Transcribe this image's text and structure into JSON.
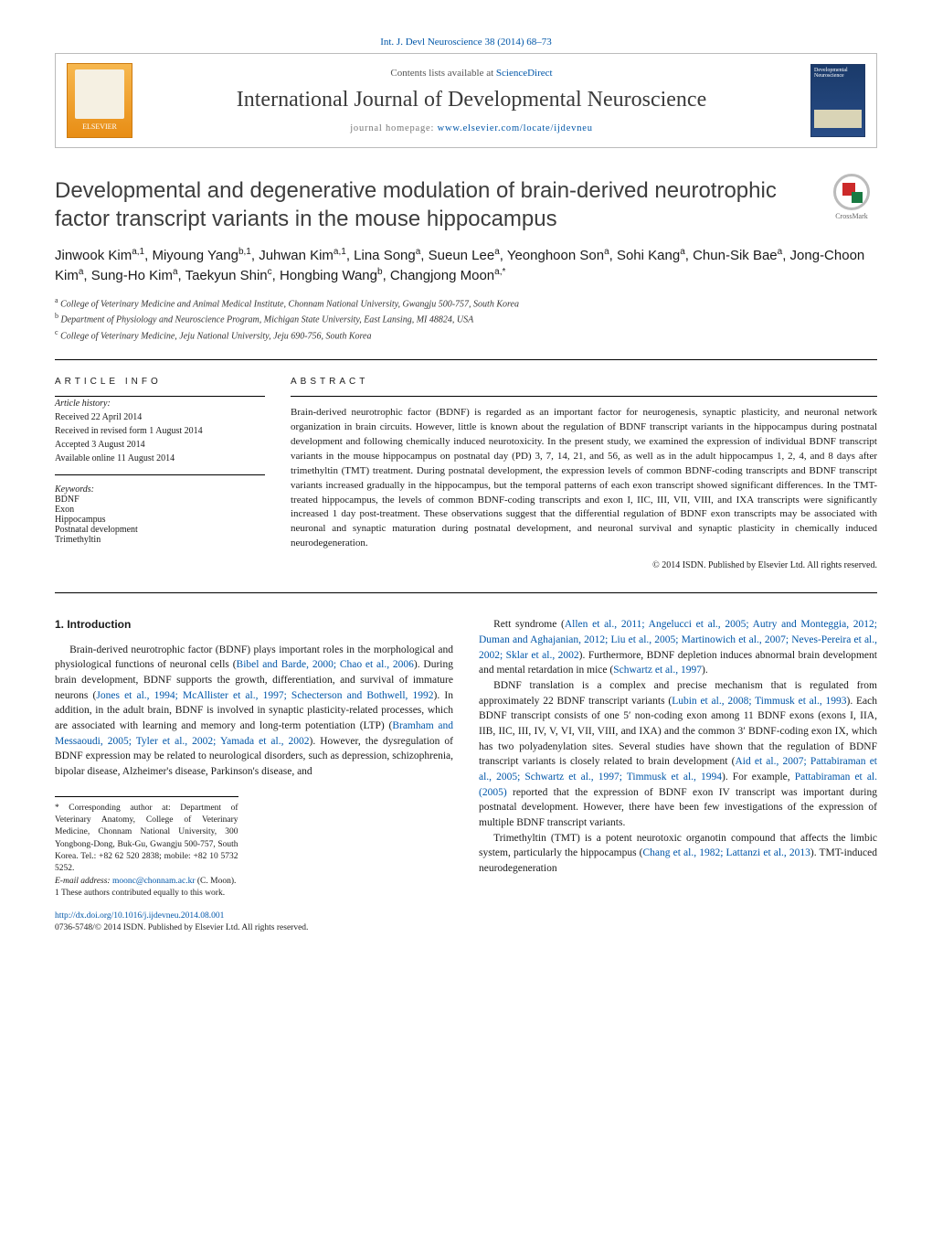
{
  "top_link_journal": "Int. J. Devl Neuroscience 38 (2014) 68–73",
  "header": {
    "contents_prefix": "Contents lists available at ",
    "contents_link": "ScienceDirect",
    "journal_name": "International Journal of Developmental Neuroscience",
    "homepage_prefix": "journal homepage: ",
    "homepage_link": "www.elsevier.com/locate/ijdevneu",
    "publisher_label": "ELSEVIER",
    "cover_label": "Developmental Neuroscience"
  },
  "crossmark_label": "CrossMark",
  "title": "Developmental and degenerative modulation of brain-derived neurotrophic factor transcript variants in the mouse hippocampus",
  "authors_html": "Jinwook Kim<sup>a,1</sup>, Miyoung Yang<sup>b,1</sup>, Juhwan Kim<sup>a,1</sup>, Lina Song<sup>a</sup>, Sueun Lee<sup>a</sup>, Yeonghoon Son<sup>a</sup>, Sohi Kang<sup>a</sup>, Chun-Sik Bae<sup>a</sup>, Jong-Choon Kim<sup>a</sup>, Sung-Ho Kim<sup>a</sup>, Taekyun Shin<sup>c</sup>, Hongbing Wang<sup>b</sup>, Changjong Moon<sup>a,*</sup>",
  "affiliations": [
    "a College of Veterinary Medicine and Animal Medical Institute, Chonnam National University, Gwangju 500-757, South Korea",
    "b Department of Physiology and Neuroscience Program, Michigan State University, East Lansing, MI 48824, USA",
    "c College of Veterinary Medicine, Jeju National University, Jeju 690-756, South Korea"
  ],
  "article_info": {
    "heading": "ARTICLE INFO",
    "history_label": "Article history:",
    "history": [
      "Received 22 April 2014",
      "Received in revised form 1 August 2014",
      "Accepted 3 August 2014",
      "Available online 11 August 2014"
    ],
    "keywords_label": "Keywords:",
    "keywords": [
      "BDNF",
      "Exon",
      "Hippocampus",
      "Postnatal development",
      "Trimethyltin"
    ]
  },
  "abstract": {
    "heading": "ABSTRACT",
    "text": "Brain-derived neurotrophic factor (BDNF) is regarded as an important factor for neurogenesis, synaptic plasticity, and neuronal network organization in brain circuits. However, little is known about the regulation of BDNF transcript variants in the hippocampus during postnatal development and following chemically induced neurotoxicity. In the present study, we examined the expression of individual BDNF transcript variants in the mouse hippocampus on postnatal day (PD) 3, 7, 14, 21, and 56, as well as in the adult hippocampus 1, 2, 4, and 8 days after trimethyltin (TMT) treatment. During postnatal development, the expression levels of common BDNF-coding transcripts and BDNF transcript variants increased gradually in the hippocampus, but the temporal patterns of each exon transcript showed significant differences. In the TMT-treated hippocampus, the levels of common BDNF-coding transcripts and exon I, IIC, III, VII, VIII, and IXA transcripts were significantly increased 1 day post-treatment. These observations suggest that the differential regulation of BDNF exon transcripts may be associated with neuronal and synaptic maturation during postnatal development, and neuronal survival and synaptic plasticity in chemically induced neurodegeneration.",
    "copyright": "© 2014 ISDN. Published by Elsevier Ltd. All rights reserved."
  },
  "section1_heading": "1. Introduction",
  "col_left_paras": [
    "Brain-derived neurotrophic factor (BDNF) plays important roles in the morphological and physiological functions of neuronal cells (<a>Bibel and Barde, 2000; Chao et al., 2006</a>). During brain development, BDNF supports the growth, differentiation, and survival of immature neurons (<a>Jones et al., 1994; McAllister et al., 1997; Schecterson and Bothwell, 1992</a>). In addition, in the adult brain, BDNF is involved in synaptic plasticity-related processes, which are associated with learning and memory and long-term potentiation (LTP) (<a>Bramham and Messaoudi, 2005; Tyler et al., 2002; Yamada et al., 2002</a>). However, the dysregulation of BDNF expression may be related to neurological disorders, such as depression, schizophrenia, bipolar disease, Alzheimer's disease, Parkinson's disease, and"
  ],
  "col_right_paras": [
    "Rett syndrome (<a>Allen et al., 2011; Angelucci et al., 2005; Autry and Monteggia, 2012; Duman and Aghajanian, 2012; Liu et al., 2005; Martinowich et al., 2007; Neves-Pereira et al., 2002; Sklar et al., 2002</a>). Furthermore, BDNF depletion induces abnormal brain development and mental retardation in mice (<a>Schwartz et al., 1997</a>).",
    "BDNF translation is a complex and precise mechanism that is regulated from approximately 22 BDNF transcript variants (<a>Lubin et al., 2008; Timmusk et al., 1993</a>). Each BDNF transcript consists of one 5′ non-coding exon among 11 BDNF exons (exons I, IIA, IIB, IIC, III, IV, V, VI, VII, VIII, and IXA) and the common 3′ BDNF-coding exon IX, which has two polyadenylation sites. Several studies have shown that the regulation of BDNF transcript variants is closely related to brain development (<a>Aid et al., 2007; Pattabiraman et al., 2005; Schwartz et al., 1997; Timmusk et al., 1994</a>). For example, <a>Pattabiraman et al. (2005)</a> reported that the expression of BDNF exon IV transcript was important during postnatal development. However, there have been few investigations of the expression of multiple BDNF transcript variants.",
    "Trimethyltin (TMT) is a potent neurotoxic organotin compound that affects the limbic system, particularly the hippocampus (<a>Chang et al., 1982; Lattanzi et al., 2013</a>). TMT-induced neurodegeneration"
  ],
  "footnotes": {
    "corresponding": "* Corresponding author at: Department of Veterinary Anatomy, College of Veterinary Medicine, Chonnam National University, 300 Yongbong-Dong, Buk-Gu, Gwangju 500-757, South Korea. Tel.: +82 62 520 2838; mobile: +82 10 5732 5252.",
    "email_label": "E-mail address: ",
    "email": "moonc@chonnam.ac.kr",
    "email_suffix": " (C. Moon).",
    "equal": "1 These authors contributed equally to this work."
  },
  "doi_link": "http://dx.doi.org/10.1016/j.ijdevneu.2014.08.001",
  "issn_line": "0736-5748/© 2014 ISDN. Published by Elsevier Ltd. All rights reserved.",
  "colors": {
    "link": "#0056a8",
    "text": "#1a1a1a",
    "muted": "#555555",
    "rule": "#000000",
    "elsevier_orange": "#e88d14",
    "cover_blue": "#284c86"
  }
}
